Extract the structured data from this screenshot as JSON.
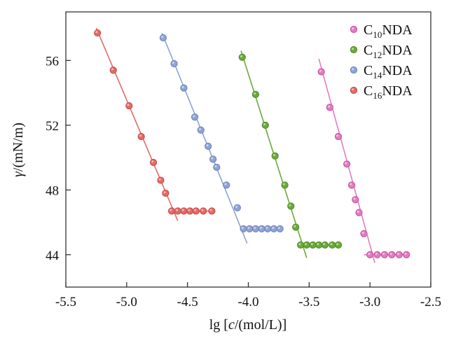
{
  "chart_data": {
    "type": "scatter",
    "xlabel_prefix": "lg [",
    "xlabel_var": "c",
    "xlabel_suffix": "/(mol/L)]",
    "ylabel_var": "γ",
    "ylabel_suffix": "/(mN/m)",
    "xlim": [
      -5.5,
      -2.5
    ],
    "ylim": [
      42,
      59
    ],
    "xticks": [
      -5.5,
      -5.0,
      -4.5,
      -4.0,
      -3.5,
      -3.0,
      -2.5
    ],
    "xtick_labels": [
      "-5.5",
      "-5.0",
      "-4.5",
      "-4.0",
      "-3.5",
      "-3.0",
      "-2.5"
    ],
    "yticks": [
      44,
      48,
      52,
      56
    ],
    "ytick_labels": [
      "44",
      "48",
      "52",
      "56"
    ],
    "grid": false,
    "legend_position": "top-right",
    "series": [
      {
        "name": "C10NDA",
        "name_parts": [
          "C",
          "10",
          "NDA"
        ],
        "color": "#e27cc0",
        "edge": "#c24f9d",
        "points": [
          [
            -3.4,
            55.3
          ],
          [
            -3.33,
            53.1
          ],
          [
            -3.26,
            51.3
          ],
          [
            -3.19,
            49.6
          ],
          [
            -3.15,
            48.3
          ],
          [
            -3.12,
            47.4
          ],
          [
            -3.09,
            46.6
          ],
          [
            -3.05,
            45.3
          ],
          [
            -3.0,
            44.0
          ],
          [
            -2.94,
            44.0
          ],
          [
            -2.88,
            44.0
          ],
          [
            -2.82,
            44.0
          ],
          [
            -2.76,
            44.0
          ],
          [
            -2.7,
            44.0
          ]
        ],
        "fit_lines": [
          [
            [
              -3.42,
              56.1
            ],
            [
              -2.96,
              43.5
            ]
          ],
          [
            [
              -3.05,
              44.0
            ],
            [
              -2.7,
              44.0
            ]
          ]
        ]
      },
      {
        "name": "C12NDA",
        "name_parts": [
          "C",
          "12",
          "NDA"
        ],
        "color": "#6aaa3a",
        "edge": "#4f8a25",
        "points": [
          [
            -4.05,
            56.2
          ],
          [
            -3.94,
            53.9
          ],
          [
            -3.86,
            52.0
          ],
          [
            -3.78,
            50.1
          ],
          [
            -3.7,
            48.3
          ],
          [
            -3.65,
            47.0
          ],
          [
            -3.61,
            45.7
          ],
          [
            -3.57,
            44.6
          ],
          [
            -3.52,
            44.6
          ],
          [
            -3.47,
            44.6
          ],
          [
            -3.42,
            44.6
          ],
          [
            -3.37,
            44.6
          ],
          [
            -3.31,
            44.6
          ],
          [
            -3.26,
            44.6
          ]
        ],
        "fit_lines": [
          [
            [
              -4.06,
              56.6
            ],
            [
              -3.52,
              43.8
            ]
          ],
          [
            [
              -3.58,
              44.6
            ],
            [
              -3.26,
              44.6
            ]
          ]
        ]
      },
      {
        "name": "C14NDA",
        "name_parts": [
          "C",
          "14",
          "NDA"
        ],
        "color": "#8fa3d4",
        "edge": "#6b82bb",
        "points": [
          [
            -4.7,
            57.4
          ],
          [
            -4.61,
            55.8
          ],
          [
            -4.53,
            54.3
          ],
          [
            -4.44,
            52.5
          ],
          [
            -4.39,
            51.7
          ],
          [
            -4.33,
            50.7
          ],
          [
            -4.29,
            49.9
          ],
          [
            -4.26,
            49.4
          ],
          [
            -4.18,
            48.3
          ],
          [
            -4.09,
            46.9
          ],
          [
            -4.04,
            45.6
          ],
          [
            -3.99,
            45.6
          ],
          [
            -3.94,
            45.6
          ],
          [
            -3.89,
            45.6
          ],
          [
            -3.84,
            45.6
          ],
          [
            -3.79,
            45.6
          ],
          [
            -3.74,
            45.6
          ]
        ],
        "fit_lines": [
          [
            [
              -4.71,
              57.7
            ],
            [
              -4.01,
              44.7
            ]
          ],
          [
            [
              -4.06,
              45.6
            ],
            [
              -3.74,
              45.6
            ]
          ]
        ]
      },
      {
        "name": "C16NDA",
        "name_parts": [
          "C",
          "16",
          "NDA"
        ],
        "color": "#e36a66",
        "edge": "#c74945",
        "points": [
          [
            -5.24,
            57.7
          ],
          [
            -5.11,
            55.4
          ],
          [
            -4.98,
            53.2
          ],
          [
            -4.88,
            51.3
          ],
          [
            -4.78,
            49.7
          ],
          [
            -4.72,
            48.6
          ],
          [
            -4.68,
            47.8
          ],
          [
            -4.63,
            46.7
          ],
          [
            -4.58,
            46.7
          ],
          [
            -4.53,
            46.7
          ],
          [
            -4.48,
            46.7
          ],
          [
            -4.43,
            46.7
          ],
          [
            -4.37,
            46.7
          ],
          [
            -4.3,
            46.7
          ]
        ],
        "fit_lines": [
          [
            [
              -5.25,
              58.0
            ],
            [
              -4.58,
              46.1
            ]
          ],
          [
            [
              -4.64,
              46.7
            ],
            [
              -4.3,
              46.7
            ]
          ]
        ]
      }
    ]
  }
}
